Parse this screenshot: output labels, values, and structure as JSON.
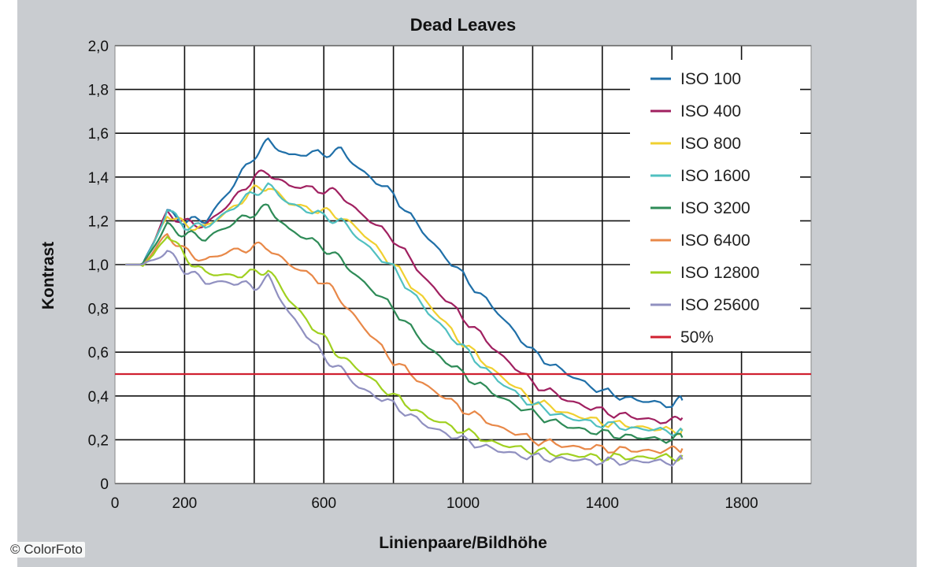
{
  "credit": "© ColorFoto",
  "chart_data": {
    "type": "line",
    "title": "Dead Leaves",
    "xlabel": "Linienpaare/Bildhöhe",
    "ylabel": "Kontrast",
    "xlim": [
      0,
      2000
    ],
    "ylim": [
      0,
      2.0
    ],
    "xticks": [
      0,
      200,
      600,
      1000,
      1400,
      1800
    ],
    "xtick_labels": [
      "0",
      "200",
      "600",
      "1000",
      "1400",
      "1800"
    ],
    "xgrid": [
      200,
      400,
      600,
      800,
      1000,
      1200,
      1400,
      1600,
      1800
    ],
    "yticks": [
      0,
      0.2,
      0.4,
      0.6,
      0.8,
      1.0,
      1.2,
      1.4,
      1.6,
      1.8,
      2.0
    ],
    "ytick_labels": [
      "0",
      "0,2",
      "0,4",
      "0,6",
      "0,8",
      "1,0",
      "1,2",
      "1,4",
      "1,6",
      "1,8",
      "2,0"
    ],
    "grid": true,
    "legend_position": "top-right",
    "x": [
      30,
      80,
      110,
      150,
      200,
      260,
      330,
      400,
      440,
      500,
      600,
      650,
      700,
      800,
      900,
      1000,
      1100,
      1200,
      1300,
      1400,
      1500,
      1600,
      1630
    ],
    "series": [
      {
        "name": "ISO 100",
        "color": "#1f6fa8",
        "values": [
          1.0,
          1.0,
          1.1,
          1.24,
          1.2,
          1.2,
          1.34,
          1.5,
          1.56,
          1.5,
          1.51,
          1.52,
          1.44,
          1.32,
          1.12,
          0.95,
          0.78,
          0.6,
          0.5,
          0.42,
          0.38,
          0.36,
          0.38
        ]
      },
      {
        "name": "ISO 400",
        "color": "#a02060",
        "values": [
          1.0,
          1.0,
          1.1,
          1.24,
          1.19,
          1.18,
          1.28,
          1.4,
          1.42,
          1.36,
          1.34,
          1.32,
          1.24,
          1.12,
          0.92,
          0.76,
          0.6,
          0.46,
          0.38,
          0.33,
          0.3,
          0.28,
          0.3
        ]
      },
      {
        "name": "ISO 800",
        "color": "#f0d030",
        "values": [
          1.0,
          1.0,
          1.09,
          1.23,
          1.18,
          1.17,
          1.25,
          1.34,
          1.36,
          1.28,
          1.24,
          1.22,
          1.16,
          1.0,
          0.82,
          0.64,
          0.5,
          0.38,
          0.32,
          0.28,
          0.26,
          0.24,
          0.25
        ]
      },
      {
        "name": "ISO 1600",
        "color": "#50c0c0",
        "values": [
          1.0,
          1.0,
          1.09,
          1.25,
          1.18,
          1.17,
          1.25,
          1.33,
          1.36,
          1.28,
          1.22,
          1.2,
          1.12,
          0.98,
          0.78,
          0.62,
          0.47,
          0.36,
          0.3,
          0.27,
          0.25,
          0.24,
          0.24
        ]
      },
      {
        "name": "ISO 3200",
        "color": "#2e8b57",
        "values": [
          1.0,
          1.0,
          1.08,
          1.18,
          1.14,
          1.12,
          1.18,
          1.24,
          1.26,
          1.16,
          1.08,
          1.02,
          0.94,
          0.8,
          0.62,
          0.5,
          0.4,
          0.32,
          0.26,
          0.23,
          0.21,
          0.2,
          0.21
        ]
      },
      {
        "name": "ISO 6400",
        "color": "#e88848",
        "values": [
          1.0,
          1.0,
          1.06,
          1.14,
          1.06,
          1.02,
          1.06,
          1.08,
          1.08,
          1.0,
          0.92,
          0.84,
          0.74,
          0.56,
          0.44,
          0.34,
          0.26,
          0.2,
          0.17,
          0.16,
          0.15,
          0.15,
          0.16
        ]
      },
      {
        "name": "ISO 12800",
        "color": "#a0d020",
        "values": [
          1.0,
          1.0,
          1.04,
          1.14,
          1.04,
          0.96,
          0.95,
          0.96,
          0.98,
          0.84,
          0.66,
          0.58,
          0.52,
          0.4,
          0.3,
          0.24,
          0.18,
          0.15,
          0.13,
          0.12,
          0.12,
          0.12,
          0.13
        ]
      },
      {
        "name": "ISO 25600",
        "color": "#9090c0",
        "values": [
          1.0,
          1.0,
          1.02,
          1.06,
          0.98,
          0.92,
          0.92,
          0.9,
          0.94,
          0.78,
          0.58,
          0.52,
          0.44,
          0.36,
          0.26,
          0.2,
          0.15,
          0.12,
          0.11,
          0.1,
          0.1,
          0.1,
          0.11
        ]
      },
      {
        "name": "50%",
        "color": "#d02030",
        "values": [
          0.5,
          0.5,
          0.5,
          0.5,
          0.5,
          0.5,
          0.5,
          0.5,
          0.5,
          0.5,
          0.5,
          0.5,
          0.5,
          0.5,
          0.5,
          0.5,
          0.5,
          0.5,
          0.5,
          0.5,
          0.5,
          0.5,
          0.5
        ]
      }
    ]
  }
}
